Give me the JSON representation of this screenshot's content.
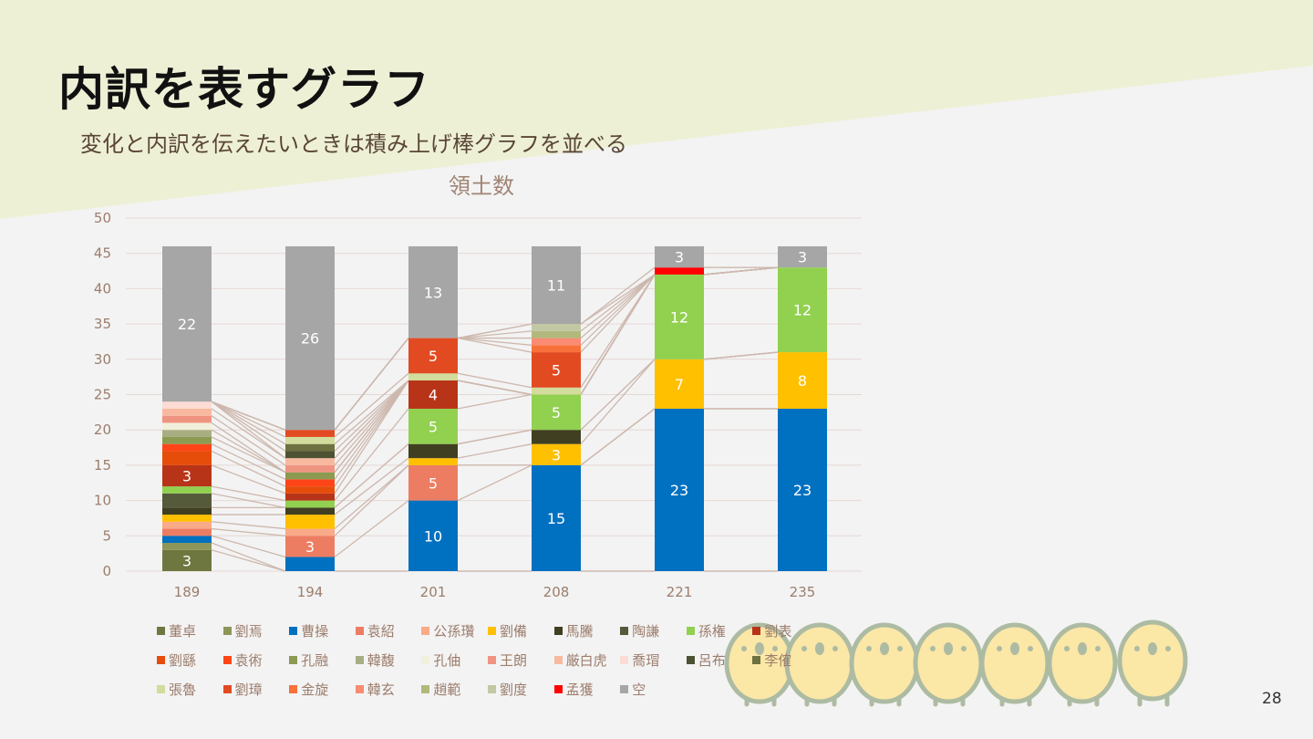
{
  "slide": {
    "title": "内訳を表すグラフ",
    "subtitle": "変化と内訳を伝えたいときは積み上げ棒グラフを並べる",
    "page_number": "28",
    "colors": {
      "header_band": "#eef0d6",
      "background": "#f3f3f3"
    }
  },
  "chart_data": {
    "type": "bar",
    "stacked": true,
    "title": "領土数",
    "xlabel": "",
    "ylabel": "",
    "ylim": [
      0,
      50
    ],
    "yticks": [
      0,
      5,
      10,
      15,
      20,
      25,
      30,
      35,
      40,
      45,
      50
    ],
    "grid": true,
    "series_lines": true,
    "legend_position": "bottom",
    "categories": [
      "189",
      "194",
      "201",
      "208",
      "221",
      "235"
    ],
    "series": [
      {
        "name": "董卓",
        "color": "#6f7740",
        "values": [
          3,
          0,
          0,
          0,
          0,
          0
        ]
      },
      {
        "name": "劉焉",
        "color": "#8d9658",
        "values": [
          1,
          0,
          0,
          0,
          0,
          0
        ]
      },
      {
        "name": "曹操",
        "color": "#0070c0",
        "values": [
          1,
          2,
          10,
          15,
          23,
          23
        ]
      },
      {
        "name": "袁紹",
        "color": "#ed7d62",
        "values": [
          1,
          3,
          5,
          0,
          0,
          0
        ]
      },
      {
        "name": "公孫瓚",
        "color": "#f9aa88",
        "values": [
          1,
          1,
          0,
          0,
          0,
          0
        ]
      },
      {
        "name": "劉備",
        "color": "#ffc000",
        "values": [
          1,
          2,
          1,
          3,
          7,
          8
        ]
      },
      {
        "name": "馬騰",
        "color": "#403f22",
        "values": [
          1,
          1,
          2,
          2,
          0,
          0
        ]
      },
      {
        "name": "陶謙",
        "color": "#545a3a",
        "values": [
          2,
          0,
          0,
          0,
          0,
          0
        ]
      },
      {
        "name": "孫権",
        "color": "#92d050",
        "values": [
          1,
          1,
          5,
          5,
          12,
          12
        ]
      },
      {
        "name": "劉表",
        "color": "#b83418",
        "values": [
          3,
          1,
          4,
          0,
          0,
          0
        ]
      },
      {
        "name": "劉繇",
        "color": "#e64c0a",
        "values": [
          2,
          1,
          0,
          0,
          0,
          0
        ]
      },
      {
        "name": "袁術",
        "color": "#ff4518",
        "values": [
          1,
          1,
          0,
          0,
          0,
          0
        ]
      },
      {
        "name": "孔融",
        "color": "#8c9a52",
        "values": [
          1,
          1,
          0,
          0,
          0,
          0
        ]
      },
      {
        "name": "韓馥",
        "color": "#a8ae82",
        "values": [
          1,
          0,
          0,
          0,
          0,
          0
        ]
      },
      {
        "name": "孔伷",
        "color": "#f1f0dc",
        "values": [
          1,
          0,
          0,
          0,
          0,
          0
        ]
      },
      {
        "name": "王朗",
        "color": "#f09482",
        "values": [
          1,
          1,
          0,
          0,
          0,
          0
        ]
      },
      {
        "name": "厳白虎",
        "color": "#f8b9a0",
        "values": [
          1,
          1,
          0,
          0,
          0,
          0
        ]
      },
      {
        "name": "喬瑁",
        "color": "#fcdcd4",
        "values": [
          1,
          0,
          0,
          0,
          0,
          0
        ]
      },
      {
        "name": "呂布",
        "color": "#4c5232",
        "values": [
          0,
          1,
          0,
          0,
          0,
          0
        ]
      },
      {
        "name": "李傕",
        "color": "#6e7240",
        "values": [
          0,
          1,
          0,
          0,
          0,
          0
        ]
      },
      {
        "name": "張魯",
        "color": "#d2dc9c",
        "values": [
          0,
          1,
          1,
          1,
          0,
          0
        ]
      },
      {
        "name": "劉璋",
        "color": "#e24a22",
        "values": [
          0,
          1,
          5,
          5,
          0,
          0
        ]
      },
      {
        "name": "金旋",
        "color": "#f8703a",
        "values": [
          0,
          0,
          0,
          1,
          0,
          0
        ]
      },
      {
        "name": "韓玄",
        "color": "#f98c72",
        "values": [
          0,
          0,
          0,
          1,
          0,
          0
        ]
      },
      {
        "name": "趙範",
        "color": "#b2b87c",
        "values": [
          0,
          0,
          0,
          1,
          0,
          0
        ]
      },
      {
        "name": "劉度",
        "color": "#c2c8a4",
        "values": [
          0,
          0,
          0,
          1,
          0,
          0
        ]
      },
      {
        "name": "孟獲",
        "color": "#ff0000",
        "values": [
          0,
          0,
          0,
          0,
          1,
          0
        ]
      },
      {
        "name": "空",
        "color": "#a6a6a6",
        "values": [
          22,
          26,
          13,
          11,
          3,
          3
        ]
      }
    ]
  }
}
